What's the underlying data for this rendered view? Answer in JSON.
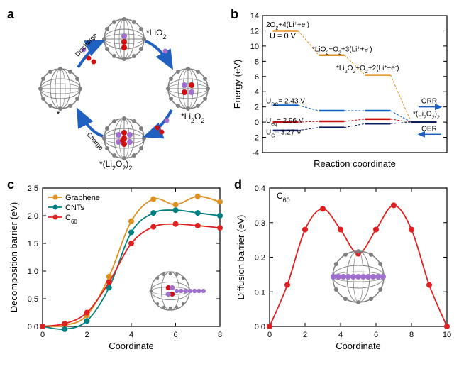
{
  "panelA": {
    "label": "a",
    "species": [
      "*",
      "*LiO₂",
      "*Li₂O₂",
      "*(Li₂O₂)₂"
    ],
    "arrow_labels": [
      "Discharge",
      "Charge"
    ],
    "fullerene_color": "#808080",
    "li_color": "#a070d0",
    "o_color": "#d01010",
    "arrow_color": "#2060c0"
  },
  "panelB": {
    "label": "b",
    "xlabel": "Reaction coordinate",
    "ylabel": "Energy (eV)",
    "ylim": [
      -4,
      14
    ],
    "yticks": [
      -4,
      -2,
      0,
      2,
      4,
      6,
      8,
      10,
      12,
      14
    ],
    "species_labels": [
      "2O₂+4(Li⁺+e⁻)",
      "*LiO₂+O₂+3(Li⁺+e⁻)",
      "*Li₂O₂+O₂+2(Li⁺+e⁻)",
      "*(Li₂O₂)₂"
    ],
    "u_labels": [
      "U = 0 V",
      "U_DC = 2.43 V",
      "U_eq = 2.96 V",
      "U_C = 3.27 V"
    ],
    "reaction_labels": [
      "ORR",
      "OER"
    ],
    "series": {
      "U0": {
        "color": "#e09020",
        "values": [
          12.0,
          8.8,
          6.2,
          0.0
        ]
      },
      "UDC": {
        "color": "#1060c0",
        "values": [
          2.2,
          1.5,
          1.5,
          0.0
        ]
      },
      "Ueq": {
        "color": "#c01010",
        "values": [
          0.0,
          0.1,
          0.4,
          0.0
        ]
      },
      "UC": {
        "color": "#102060",
        "values": [
          -1.1,
          -0.7,
          -0.2,
          0.0
        ]
      }
    }
  },
  "panelC": {
    "label": "c",
    "xlabel": "Coordinate",
    "ylabel": "Decomposition barrier (eV)",
    "xlim": [
      0,
      8
    ],
    "ylim": [
      0,
      2.5
    ],
    "xticks": [
      0,
      2,
      4,
      6,
      8
    ],
    "yticks": [
      0.0,
      0.5,
      1.0,
      1.5,
      2.0,
      2.5
    ],
    "legend": [
      "Graphene",
      "CNTs",
      "C₆₀"
    ],
    "series": {
      "Graphene": {
        "color": "#e09020",
        "values": [
          0.0,
          0.02,
          0.2,
          0.9,
          1.9,
          2.3,
          2.2,
          2.35,
          2.25
        ]
      },
      "CNTs": {
        "color": "#008080",
        "values": [
          0.0,
          -0.05,
          0.1,
          0.7,
          1.7,
          2.05,
          2.1,
          2.05,
          2.0
        ]
      },
      "C60": {
        "color": "#e02020",
        "values": [
          0.0,
          0.05,
          0.25,
          0.8,
          1.5,
          1.8,
          1.85,
          1.82,
          1.78
        ]
      }
    }
  },
  "panelD": {
    "label": "d",
    "xlabel": "Coordinate",
    "ylabel": "Diffusion barrier (eV)",
    "label_text": "C₆₀",
    "xlim": [
      0,
      10
    ],
    "ylim": [
      0,
      0.4
    ],
    "xticks": [
      0,
      2,
      4,
      6,
      8,
      10
    ],
    "yticks": [
      0.0,
      0.1,
      0.2,
      0.3,
      0.4
    ],
    "series": {
      "C60": {
        "color": "#e02020",
        "values": [
          0.0,
          0.12,
          0.28,
          0.34,
          0.28,
          0.21,
          0.28,
          0.35,
          0.28,
          0.12,
          0.0
        ]
      }
    }
  }
}
